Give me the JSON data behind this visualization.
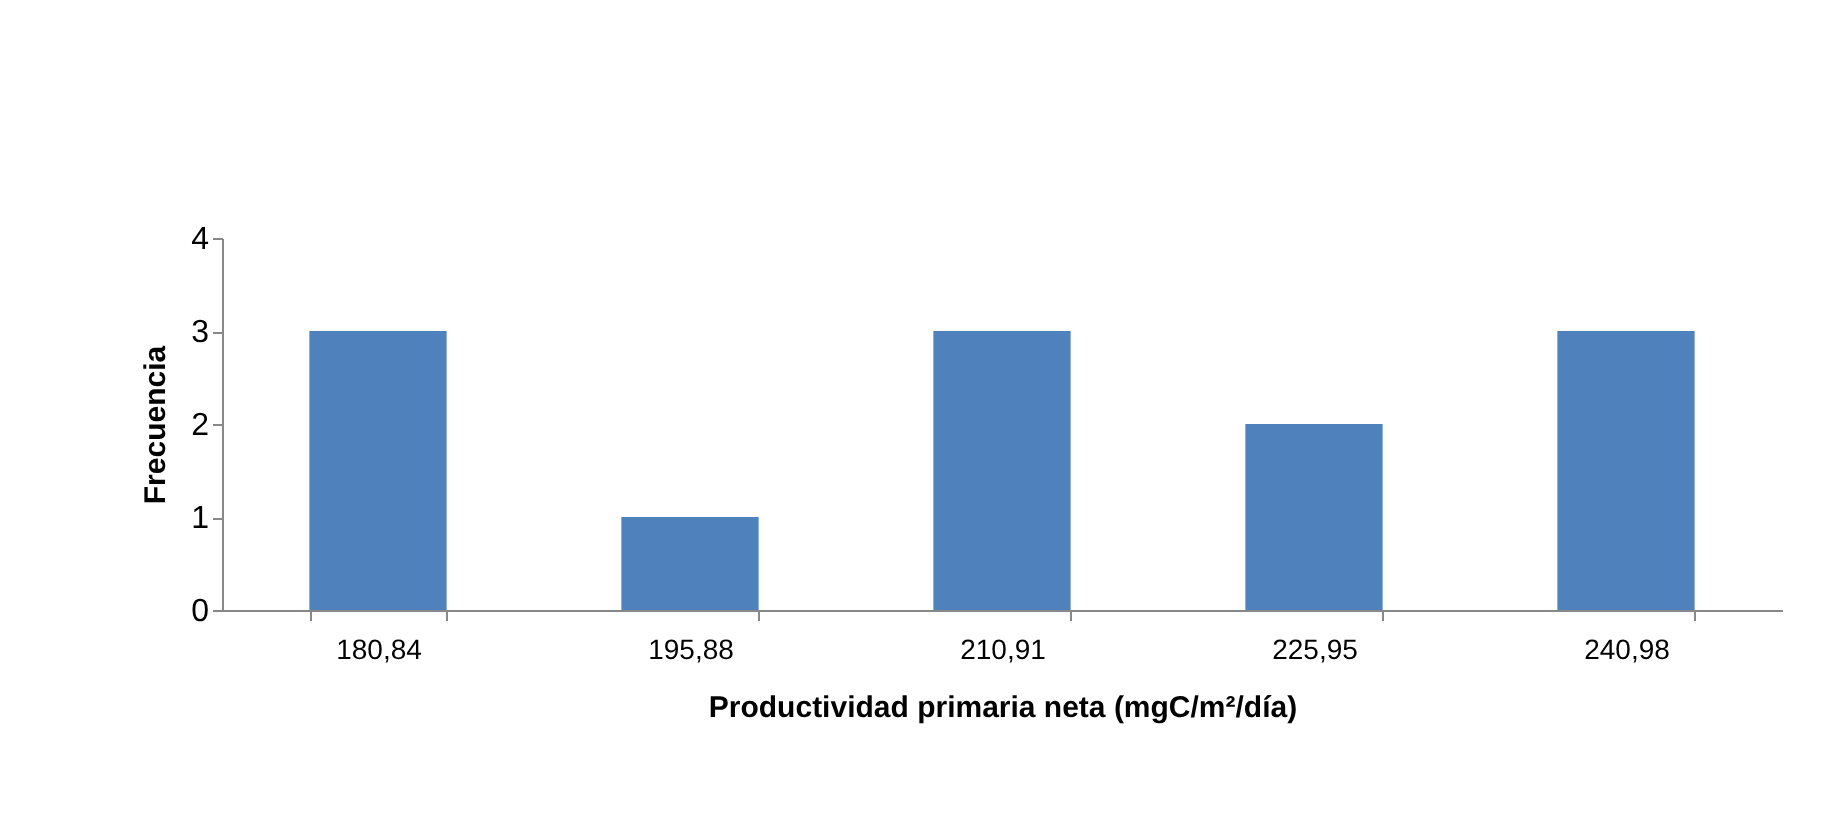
{
  "chart_data": {
    "type": "bar",
    "xlabel": "Productividad primaria neta (mgC/m²/día)",
    "ylabel": "Frecuencia",
    "categories": [
      "180,84",
      "195,88",
      "210,91",
      "225,95",
      "240,98"
    ],
    "values": [
      3,
      1,
      3,
      2,
      3
    ],
    "color": "#4f81bd",
    "ylim": [
      0,
      4
    ],
    "yticks": [
      0,
      1,
      2,
      3,
      4
    ],
    "grid": false
  }
}
